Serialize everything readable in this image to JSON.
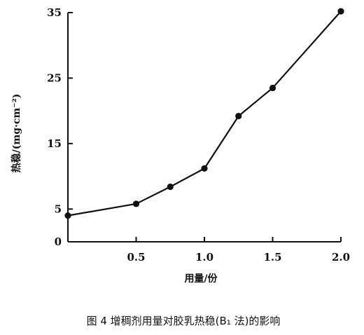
{
  "chart_data": {
    "type": "line",
    "title": "",
    "caption": "图 4   增稠剂用量对胶乳热稳(B₁ 法)的影响",
    "xlabel": "用量/份",
    "ylabel": "热稳/(mg·cm⁻²)",
    "xlim": [
      0,
      2.0
    ],
    "ylim": [
      0,
      35
    ],
    "xticks": [
      0.5,
      1.0,
      1.5,
      2.0
    ],
    "xtick_labels": [
      "0.5",
      "1.0",
      "1.5",
      "2.0"
    ],
    "yticks": [
      0,
      5,
      15,
      25,
      35
    ],
    "ytick_labels": [
      "0",
      "5",
      "15",
      "25",
      "35"
    ],
    "grid": false,
    "series": [
      {
        "x": [
          0,
          0.5,
          0.75,
          1.0,
          1.25,
          1.5,
          2.0
        ],
        "y": [
          4.0,
          5.8,
          8.4,
          11.2,
          19.2,
          23.5,
          35.2
        ]
      }
    ],
    "color": "#111111"
  }
}
